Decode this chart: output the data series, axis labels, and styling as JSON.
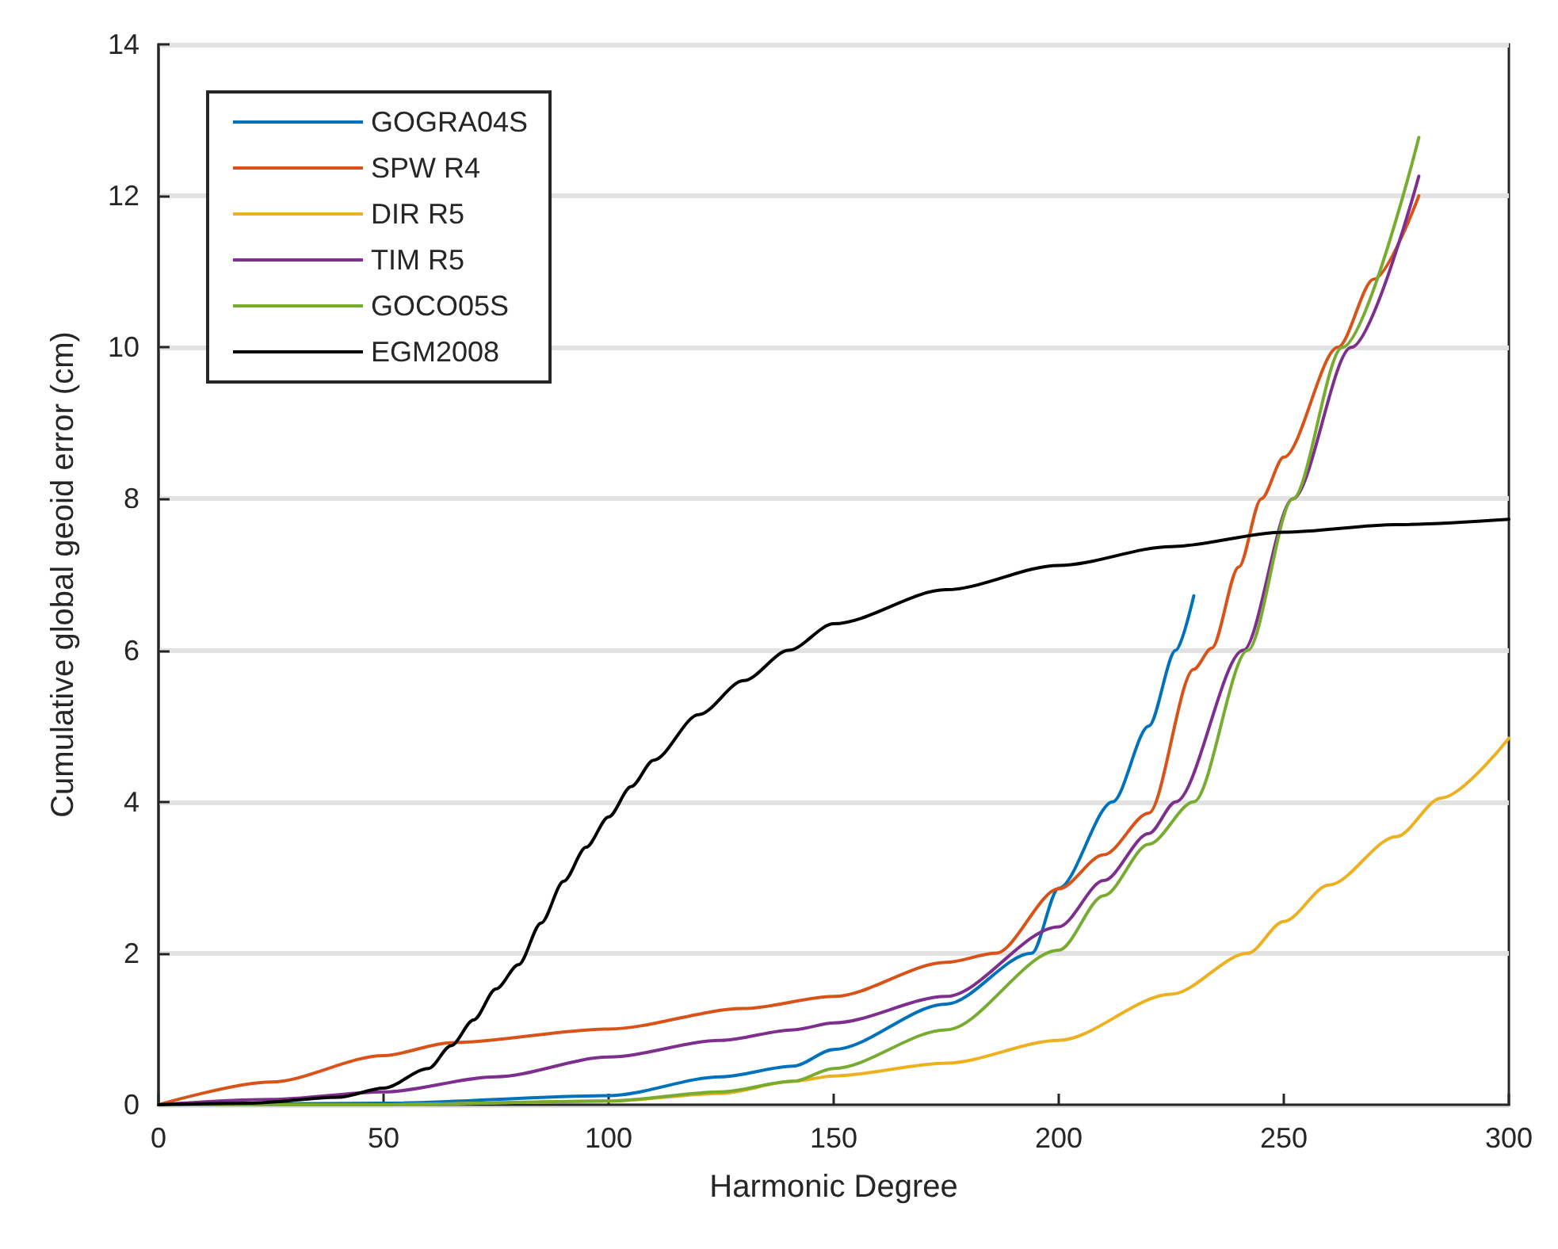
{
  "chart_data": {
    "type": "line",
    "xlabel": "Harmonic Degree",
    "ylabel": "Cumulative global geoid error (cm)",
    "xlim": [
      0,
      300
    ],
    "xticks": [
      0,
      50,
      100,
      150,
      200,
      250,
      300
    ],
    "ylim": [
      0,
      14
    ],
    "yticks": [
      0,
      2,
      4,
      6,
      8,
      10,
      12,
      14
    ],
    "grid": "y",
    "legend": "top left",
    "marker": "none",
    "line_style": "solid",
    "series": [
      {
        "name": "GOGRA04S",
        "color": "#0072bd",
        "x": [
          0,
          50,
          100,
          125,
          141,
          150,
          175,
          194,
          200,
          212,
          220,
          226,
          230
        ],
        "values": [
          0,
          0.02,
          0.12,
          0.37,
          0.51,
          0.73,
          1.33,
          2,
          2.86,
          4,
          5,
          6,
          6.72
        ]
      },
      {
        "name": "SPW R4",
        "color": "#d95319",
        "x": [
          0,
          25,
          50,
          65,
          100,
          130,
          150,
          175,
          186,
          200,
          210,
          220,
          230,
          234,
          240,
          245,
          250,
          262,
          270,
          280
        ],
        "values": [
          0,
          0.3,
          0.65,
          0.82,
          1,
          1.27,
          1.43,
          1.88,
          2,
          2.85,
          3.3,
          3.85,
          5.75,
          6.03,
          7.1,
          8,
          8.55,
          10,
          10.9,
          12
        ]
      },
      {
        "name": "DIR R5",
        "color": "#edb120",
        "x": [
          0,
          50,
          100,
          125,
          141,
          150,
          175,
          200,
          225,
          242,
          250,
          260,
          275,
          285,
          300
        ],
        "values": [
          0,
          0,
          0.05,
          0.15,
          0.31,
          0.38,
          0.55,
          0.85,
          1.46,
          2,
          2.42,
          2.9,
          3.54,
          4.05,
          4.84
        ]
      },
      {
        "name": "TIM R5",
        "color": "#7e2f8e",
        "x": [
          0,
          25,
          50,
          75,
          100,
          125,
          141,
          150,
          175,
          200,
          210,
          220,
          226,
          241,
          252,
          265,
          280
        ],
        "values": [
          0,
          0.07,
          0.17,
          0.37,
          0.63,
          0.85,
          0.99,
          1.08,
          1.43,
          2.35,
          2.96,
          3.58,
          4,
          6,
          8,
          10,
          12.26
        ]
      },
      {
        "name": "GOCO05S",
        "color": "#77ac30",
        "x": [
          0,
          50,
          100,
          125,
          141,
          150,
          175,
          200,
          210,
          220,
          230,
          242,
          252,
          263,
          280
        ],
        "values": [
          0,
          0,
          0.05,
          0.17,
          0.31,
          0.48,
          0.99,
          2.04,
          2.76,
          3.44,
          4,
          6,
          8,
          10,
          12.77
        ]
      },
      {
        "name": "EGM2008",
        "color": "#000000",
        "x": [
          0,
          20,
          40,
          50,
          60,
          65,
          70,
          75,
          80,
          85,
          90,
          95,
          100,
          105,
          110,
          120,
          130,
          140,
          150,
          175,
          200,
          225,
          250,
          275,
          300
        ],
        "values": [
          0,
          0.02,
          0.1,
          0.22,
          0.48,
          0.78,
          1.12,
          1.53,
          1.85,
          2.4,
          2.95,
          3.4,
          3.8,
          4.2,
          4.55,
          5.15,
          5.6,
          6,
          6.35,
          6.8,
          7.12,
          7.37,
          7.56,
          7.66,
          7.73
        ]
      }
    ]
  }
}
